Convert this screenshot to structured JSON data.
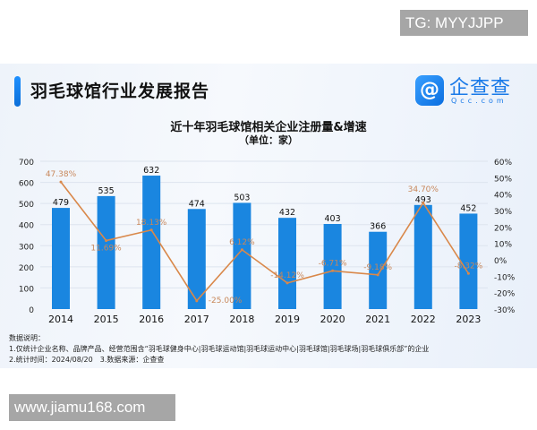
{
  "watermark_top": "TG: MYYJJPP",
  "watermark_bottom": "www.jiamu168.com",
  "header": {
    "title": "羽毛球馆行业发展报告",
    "logo_cn": "企查查",
    "logo_en": "Qcc.com"
  },
  "colors": {
    "bar": "#1a86e0",
    "line": "#d9884a",
    "label": "#c8875a"
  },
  "chart_data": {
    "type": "bar+line",
    "title": "近十年羽毛球馆相关企业注册量&增速",
    "subtitle": "（单位：家）",
    "categories": [
      "2014",
      "2015",
      "2016",
      "2017",
      "2018",
      "2019",
      "2020",
      "2021",
      "2022",
      "2023"
    ],
    "series": [
      {
        "type": "bar",
        "axis": "left",
        "values": [
          479,
          535,
          632,
          474,
          503,
          432,
          403,
          366,
          493,
          452
        ]
      },
      {
        "type": "line",
        "axis": "right",
        "values": [
          47.38,
          11.69,
          18.13,
          -25.0,
          6.12,
          -14.12,
          -6.71,
          -9.18,
          34.7,
          -8.32
        ],
        "labels": [
          "47.38%",
          "11.69%",
          "18.13%",
          "-25.00%",
          "6.12%",
          "-14.12%",
          "-6.71%",
          "-9.18%",
          "34.70%",
          "-8.32%"
        ]
      }
    ],
    "ylim_left": [
      0,
      700
    ],
    "yticks_left": [
      "0",
      "100",
      "200",
      "300",
      "400",
      "500",
      "600",
      "700"
    ],
    "ylim_right": [
      -30,
      60
    ],
    "yticks_right": [
      "-30%",
      "-20%",
      "-10%",
      "0%",
      "10%",
      "20%",
      "30%",
      "40%",
      "50%",
      "60%"
    ],
    "grid": true
  },
  "notes": {
    "heading": "数据说明：",
    "line1": "1.仅统计企业名称、品牌产品、经营范围含“羽毛球健身中心|羽毛球运动馆|羽毛球运动中心|羽毛球馆|羽毛球场|羽毛球俱乐部”的企业",
    "line2": "2.统计时间：2024/08/20　3.数据来源：企查查"
  }
}
